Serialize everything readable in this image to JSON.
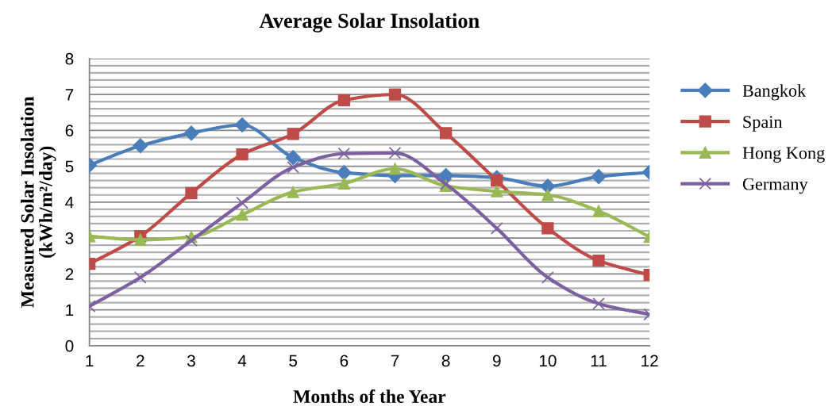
{
  "chart_data": {
    "type": "line",
    "title": "Average Solar Insolation",
    "xlabel": "Months of the Year",
    "ylabel": "Measured Solar Insolation\n(kWh/m²/day)",
    "x": [
      1,
      2,
      3,
      4,
      5,
      6,
      7,
      8,
      9,
      10,
      11,
      12
    ],
    "xlim": [
      1,
      12
    ],
    "xticks": [
      1,
      2,
      3,
      4,
      5,
      6,
      7,
      8,
      9,
      10,
      11,
      12
    ],
    "ylim": [
      0,
      8
    ],
    "yticks": [
      0,
      {
        "value": 0.2,
        "label": null
      },
      {
        "value": 0.4,
        "label": null
      },
      {
        "value": 0.6,
        "label": null
      },
      {
        "value": 0.8,
        "label": null
      },
      1,
      {
        "value": 1.2,
        "label": null
      },
      {
        "value": 1.4,
        "label": null
      },
      {
        "value": 1.6,
        "label": null
      },
      {
        "value": 1.8,
        "label": null
      },
      2,
      {
        "value": 2.2,
        "label": null
      },
      {
        "value": 2.4,
        "label": null
      },
      {
        "value": 2.6,
        "label": null
      },
      {
        "value": 2.8,
        "label": null
      },
      3,
      {
        "value": 3.2,
        "label": null
      },
      {
        "value": 3.4,
        "label": null
      },
      {
        "value": 3.6,
        "label": null
      },
      {
        "value": 3.8,
        "label": null
      },
      4,
      {
        "value": 4.2,
        "label": null
      },
      {
        "value": 4.4,
        "label": null
      },
      {
        "value": 4.6,
        "label": null
      },
      {
        "value": 4.8,
        "label": null
      },
      5,
      {
        "value": 5.2,
        "label": null
      },
      {
        "value": 5.4,
        "label": null
      },
      {
        "value": 5.6,
        "label": null
      },
      {
        "value": 5.8,
        "label": null
      },
      6,
      {
        "value": 6.2,
        "label": null
      },
      {
        "value": 6.4,
        "label": null
      },
      {
        "value": 6.6,
        "label": null
      },
      {
        "value": 6.8,
        "label": null
      },
      7,
      {
        "value": 7.2,
        "label": null
      },
      {
        "value": 7.4,
        "label": null
      },
      {
        "value": 7.6,
        "label": null
      },
      {
        "value": 7.8,
        "label": null
      },
      8
    ],
    "grid": "y",
    "legend": "right",
    "series": [
      {
        "name": "Bangkok",
        "color": "#4a7ebb",
        "marker": "diamond",
        "values": [
          5.03,
          5.57,
          5.92,
          6.15,
          5.24,
          4.82,
          4.74,
          4.74,
          4.68,
          4.44,
          4.71,
          4.83
        ]
      },
      {
        "name": "Spain",
        "color": "#be4b48",
        "marker": "square",
        "values": [
          2.28,
          3.05,
          4.25,
          5.33,
          5.9,
          6.84,
          7.0,
          5.92,
          4.6,
          3.27,
          2.37,
          1.97
        ]
      },
      {
        "name": "Hong Kong",
        "color": "#98b954",
        "marker": "triangle",
        "values": [
          3.05,
          2.95,
          3.03,
          3.65,
          4.28,
          4.52,
          4.93,
          4.45,
          4.3,
          4.2,
          3.75,
          3.03
        ]
      },
      {
        "name": "Germany",
        "color": "#7d60a0",
        "marker": "cross",
        "values": [
          1.1,
          1.9,
          2.93,
          3.98,
          4.97,
          5.35,
          5.37,
          4.5,
          3.27,
          1.9,
          1.17,
          0.87
        ]
      }
    ]
  }
}
